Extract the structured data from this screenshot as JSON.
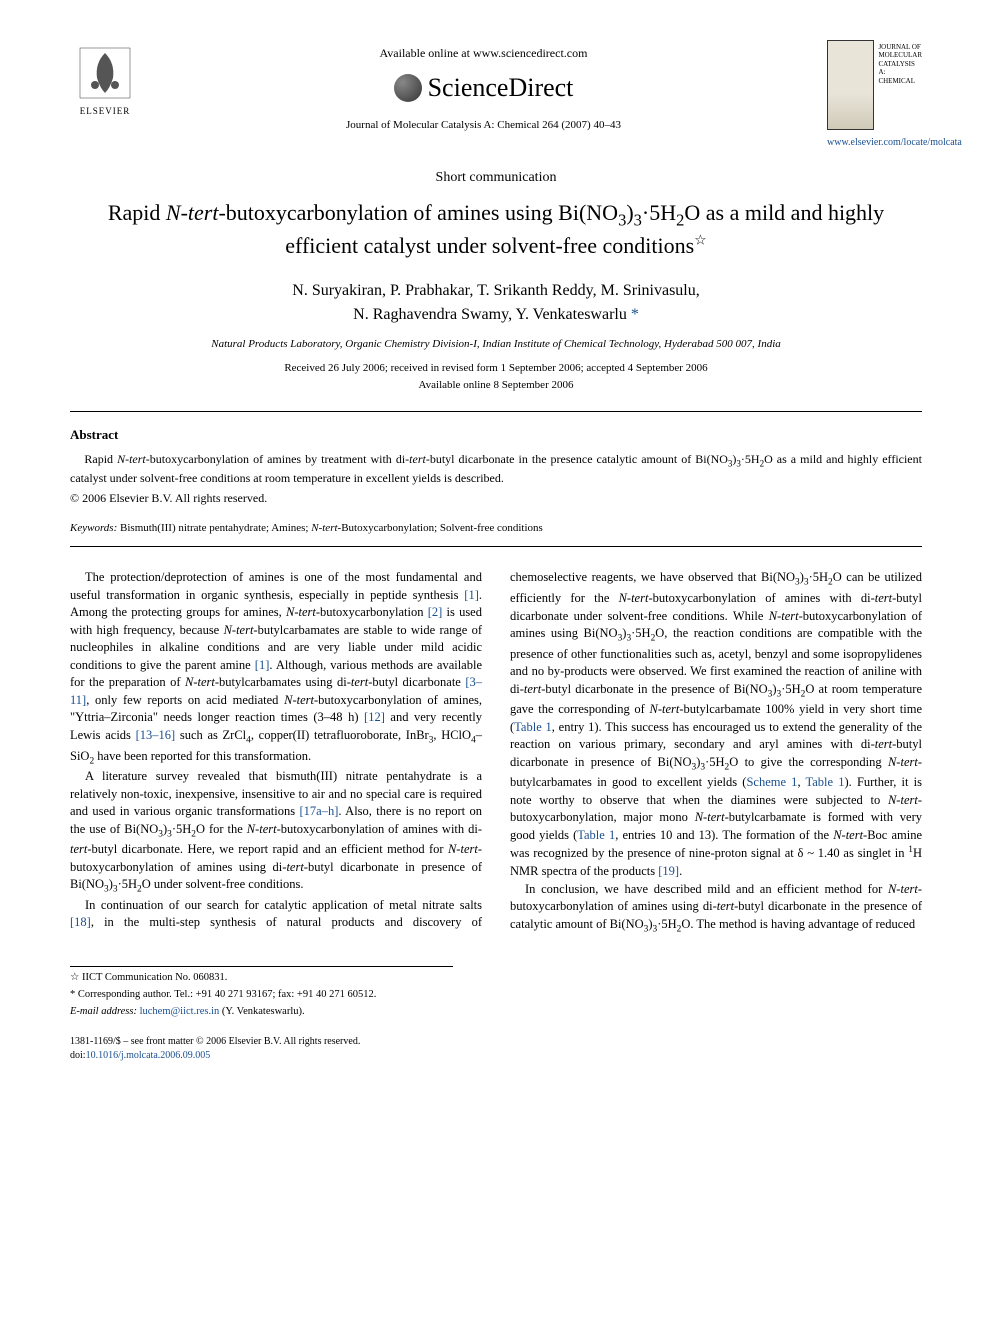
{
  "header": {
    "available_online": "Available online at www.sciencedirect.com",
    "sciencedirect": "ScienceDirect",
    "journal_ref": "Journal of Molecular Catalysis A: Chemical 264 (2007) 40–43",
    "elsevier": "ELSEVIER",
    "journal_name_lines": "JOURNAL OF MOLECULAR CATALYSIS A: CHEMICAL",
    "locate": "www.elsevier.com/locate/molcata"
  },
  "article_type": "Short communication",
  "title_html": "Rapid <span class='ital'>N-tert</span>-butoxycarbonylation of amines using Bi(NO<sub>3</sub>)<sub>3</sub>·5H<sub>2</sub>O as a mild and highly efficient catalyst under solvent-free conditions<span class='star'>☆</span>",
  "authors_html": "N. Suryakiran, P. Prabhakar, T. Srikanth Reddy, M. Srinivasulu,<br>N. Raghavendra Swamy, Y. Venkateswarlu <span class='corr'>*</span>",
  "affiliation": "Natural Products Laboratory, Organic Chemistry Division-I, Indian Institute of Chemical Technology, Hyderabad 500 007, India",
  "dates": {
    "received": "Received 26 July 2006; received in revised form 1 September 2006; accepted 4 September 2006",
    "available": "Available online 8 September 2006"
  },
  "abstract": {
    "heading": "Abstract",
    "text_html": "Rapid <span class='ital'>N-tert</span>-butoxycarbonylation of amines by treatment with di-<span class='ital'>tert</span>-butyl dicarbonate in the presence catalytic amount of Bi(NO<sub>3</sub>)<sub>3</sub>·5H<sub>2</sub>O as a mild and highly efficient catalyst under solvent-free conditions at room temperature in excellent yields is described.",
    "copyright": "© 2006 Elsevier B.V. All rights reserved."
  },
  "keywords": {
    "label": "Keywords:",
    "text_html": "Bismuth(III) nitrate pentahydrate; Amines; <span class='ital'>N-tert</span>-Butoxycarbonylation; Solvent-free conditions"
  },
  "body": {
    "p1_html": "The protection/deprotection of amines is one of the most fundamental and useful transformation in organic synthesis, especially in peptide synthesis <span class='ref-link'>[1]</span>. Among the protecting groups for amines, <span class='ital'>N-tert</span>-butoxycarbonylation <span class='ref-link'>[2]</span> is used with high frequency, because <span class='ital'>N-tert</span>-butylcarbamates are stable to wide range of nucleophiles in alkaline conditions and are very liable under mild acidic conditions to give the parent amine <span class='ref-link'>[1]</span>. Although, various methods are available for the preparation of <span class='ital'>N-tert</span>-butylcarbamates using di-<span class='ital'>tert</span>-butyl dicarbonate <span class='ref-link'>[3–11]</span>, only few reports on acid mediated <span class='ital'>N-tert</span>-butoxycarbonylation of amines, \"Yttria–Zirconia\" needs longer reaction times (3–48 h) <span class='ref-link'>[12]</span> and very recently Lewis acids <span class='ref-link'>[13–16]</span> such as ZrCl<sub>4</sub>, copper(II) tetrafluoroborate, InBr<sub>3</sub>, HClO<sub>4</sub>–SiO<sub>2</sub> have been reported for this transformation.",
    "p2_html": "A literature survey revealed that bismuth(III) nitrate pentahydrate is a relatively non-toxic, inexpensive, insensitive to air and no special care is required and used in various organic transformations <span class='ref-link'>[17a–h]</span>. Also, there is no report on the use of Bi(NO<sub>3</sub>)<sub>3</sub>·5H<sub>2</sub>O for the <span class='ital'>N-tert</span>-butoxycarbonylation of amines with di-<span class='ital'>tert</span>-butyl dicarbonate. Here, we report rapid and an efficient method for <span class='ital'>N-tert</span>-butoxycarbonylation of amines using di-<span class='ital'>tert</span>-butyl dicarbonate in presence of Bi(NO<sub>3</sub>)<sub>3</sub>·5H<sub>2</sub>O under solvent-free conditions.",
    "p3_html": "In continuation of our search for catalytic application of metal nitrate salts <span class='ref-link'>[18]</span>, in the multi-step synthesis of natural products and discovery of chemoselective reagents, we have observed that Bi(NO<sub>3</sub>)<sub>3</sub>·5H<sub>2</sub>O can be utilized efficiently for the <span class='ital'>N-tert</span>-butoxycarbonylation of amines with di-<span class='ital'>tert</span>-butyl dicarbonate under solvent-free conditions. While <span class='ital'>N-tert</span>-butoxycarbonylation of amines using Bi(NO<sub>3</sub>)<sub>3</sub>·5H<sub>2</sub>O, the reaction conditions are compatible with the presence of other functionalities such as, acetyl, benzyl and some isopropylidenes and no by-products were observed. We first examined the reaction of aniline with di-<span class='ital'>tert</span>-butyl dicarbonate in the presence of Bi(NO<sub>3</sub>)<sub>3</sub>·5H<sub>2</sub>O at room temperature gave the corresponding of <span class='ital'>N-tert</span>-butylcarbamate 100% yield in very short time (<span class='ref-link'>Table 1</span>, entry 1). This success has encouraged us to extend the generality of the reaction on various primary, secondary and aryl amines with di-<span class='ital'>tert</span>-butyl dicarbonate in presence of Bi(NO<sub>3</sub>)<sub>3</sub>·5H<sub>2</sub>O to give the corresponding <span class='ital'>N-tert</span>-butylcarbamates in good to excellent yields (<span class='ref-link'>Scheme 1</span>, <span class='ref-link'>Table 1</span>). Further, it is note worthy to observe that when the diamines were subjected to <span class='ital'>N-tert</span>-butoxycarbonylation, major mono <span class='ital'>N-tert</span>-butylcarbamate is formed with very good yields (<span class='ref-link'>Table 1</span>, entries 10 and 13). The formation of the <span class='ital'>N-tert</span>-Boc amine was recognized by the presence of nine-proton signal at δ ~ 1.40 as singlet in <sup>1</sup>H NMR spectra of the products <span class='ref-link'>[19]</span>.",
    "p4_html": "In conclusion, we have described mild and an efficient method for <span class='ital'>N-tert</span>-butoxycarbonylation of amines using di-<span class='ital'>tert</span>-butyl dicarbonate in the presence of catalytic amount of Bi(NO<sub>3</sub>)<sub>3</sub>·5H<sub>2</sub>O. The method is having advantage of reduced"
  },
  "footnotes": {
    "iict": "☆ IICT Communication No. 060831.",
    "corr": "* Corresponding author. Tel.: +91 40 271 93167; fax: +91 40 271 60512.",
    "email_label": "E-mail address:",
    "email": "luchem@iict.res.in",
    "email_name": "(Y. Venkateswarlu)."
  },
  "footer": {
    "rights": "1381-1169/$ – see front matter © 2006 Elsevier B.V. All rights reserved.",
    "doi_label": "doi:",
    "doi": "10.1016/j.molcata.2006.09.005"
  },
  "colors": {
    "link": "#1a4f8f",
    "text": "#000000",
    "background": "#ffffff"
  },
  "typography": {
    "title_fontsize": 22,
    "authors_fontsize": 16,
    "body_fontsize": 12.5,
    "abstract_fontsize": 12,
    "footnote_fontsize": 10.5
  }
}
